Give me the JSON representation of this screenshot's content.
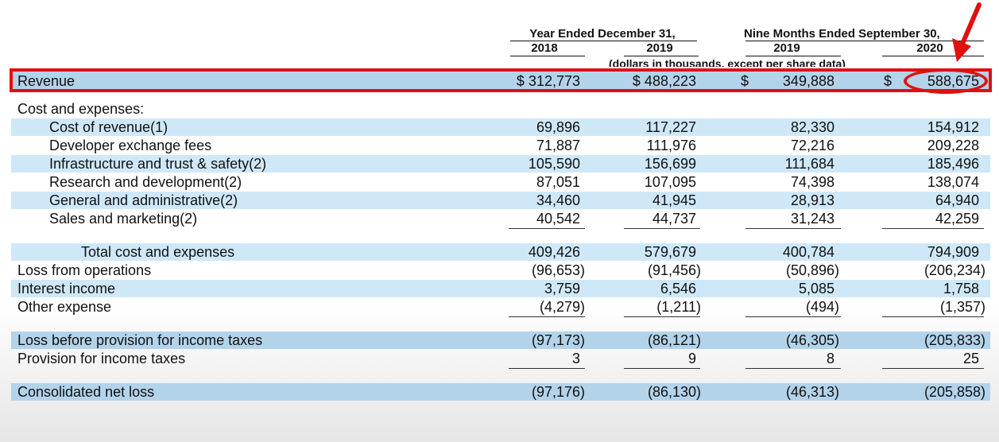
{
  "header": {
    "group1": "Year Ended December 31,",
    "group2": "Nine Months Ended September 30,",
    "years": [
      "2018",
      "2019",
      "2019",
      "2020"
    ],
    "note": "(dollars in thousands, except per share data)"
  },
  "revenue": {
    "label": "Revenue",
    "values": [
      "$ 312,773",
      "$ 488,223",
      "349,888",
      "588,675"
    ],
    "dollar": "$"
  },
  "section_label": "Cost and expenses:",
  "cost_rows": [
    {
      "label": "Cost of revenue(1)",
      "values": [
        "69,896",
        "117,227",
        "82,330",
        "154,912"
      ]
    },
    {
      "label": "Developer exchange fees",
      "values": [
        "71,887",
        "111,976",
        "72,216",
        "209,228"
      ]
    },
    {
      "label": "Infrastructure and trust & safety(2)",
      "values": [
        "105,590",
        "156,699",
        "111,684",
        "185,496"
      ]
    },
    {
      "label": "Research and development(2)",
      "values": [
        "87,051",
        "107,095",
        "74,398",
        "138,074"
      ]
    },
    {
      "label": "General and administrative(2)",
      "values": [
        "34,460",
        "41,945",
        "28,913",
        "64,940"
      ]
    },
    {
      "label": "Sales and marketing(2)",
      "values": [
        "40,542",
        "44,737",
        "31,243",
        "42,259"
      ]
    }
  ],
  "summary_rows": [
    {
      "label": "Total cost and expenses",
      "values": [
        "409,426",
        "579,679",
        "400,784",
        "794,909"
      ]
    },
    {
      "label": "Loss from operations",
      "values": [
        "(96,653)",
        "(91,456)",
        "(50,896)",
        "(206,234)"
      ]
    },
    {
      "label": "Interest income",
      "values": [
        "3,759",
        "6,546",
        "5,085",
        "1,758"
      ]
    },
    {
      "label": "Other expense",
      "values": [
        "(4,279)",
        "(1,211)",
        "(494)",
        "(1,357)"
      ]
    },
    {
      "label": "Loss before provision for income taxes",
      "values": [
        "(97,173)",
        "(86,121)",
        "(46,305)",
        "(205,833)"
      ]
    },
    {
      "label": "Provision for income taxes",
      "values": [
        "3",
        "9",
        "8",
        "25"
      ]
    },
    {
      "label": "Consolidated net loss",
      "values": [
        "(97,176)",
        "(86,130)",
        "(46,313)",
        "(205,858)"
      ]
    }
  ],
  "colors": {
    "highlight": "#e01010",
    "band_light": "#cfe8f8",
    "band_blue": "#b3d3ea"
  }
}
